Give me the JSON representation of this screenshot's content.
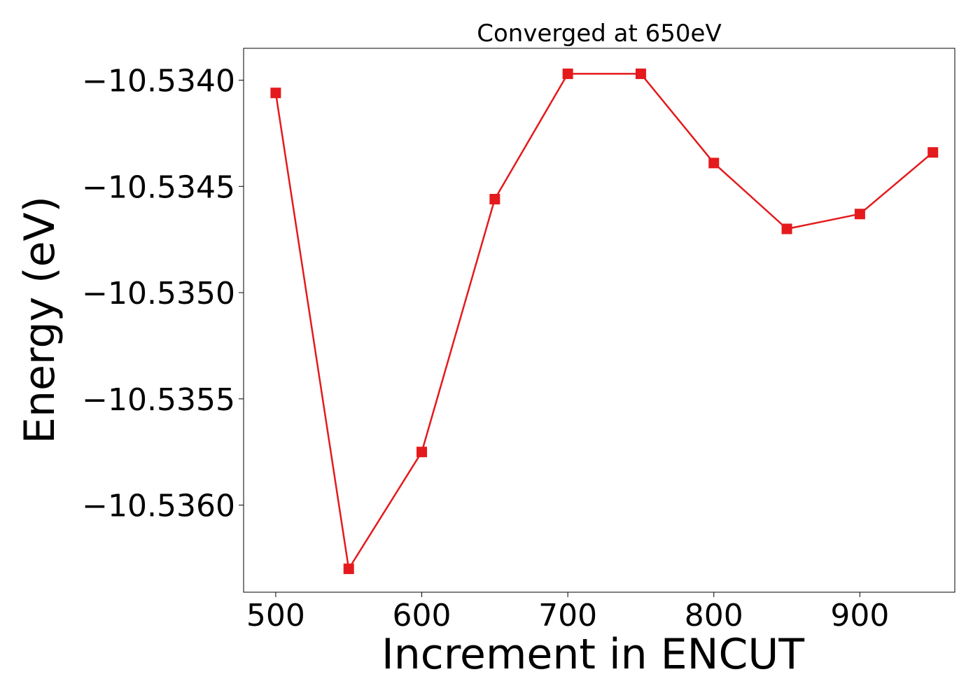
{
  "chart_data": {
    "type": "line",
    "title": "Converged at 650eV",
    "xlabel": "Increment in ENCUT",
    "ylabel": "Energy (eV)",
    "x": [
      500,
      550,
      600,
      650,
      700,
      750,
      800,
      850,
      900,
      950
    ],
    "series": [
      {
        "values": [
          -10.53406,
          -10.5363,
          -10.53575,
          -10.53456,
          -10.53397,
          -10.53397,
          -10.53439,
          -10.5347,
          -10.53463,
          -10.53434
        ],
        "color": "#e41a1c",
        "marker": "square"
      }
    ],
    "xlim": [
      478,
      965
    ],
    "ylim": [
      -10.53641,
      -10.53385
    ],
    "xticks": [
      500,
      600,
      700,
      800,
      900
    ],
    "xtick_labels": [
      "500",
      "600",
      "700",
      "800",
      "900"
    ],
    "yticks": [
      -10.534,
      -10.5345,
      -10.535,
      -10.5355,
      -10.536
    ],
    "ytick_labels": [
      "−10.5340",
      "−10.5345",
      "−10.5350",
      "−10.5355",
      "−10.5360"
    ],
    "grid": false,
    "legend": "none"
  }
}
